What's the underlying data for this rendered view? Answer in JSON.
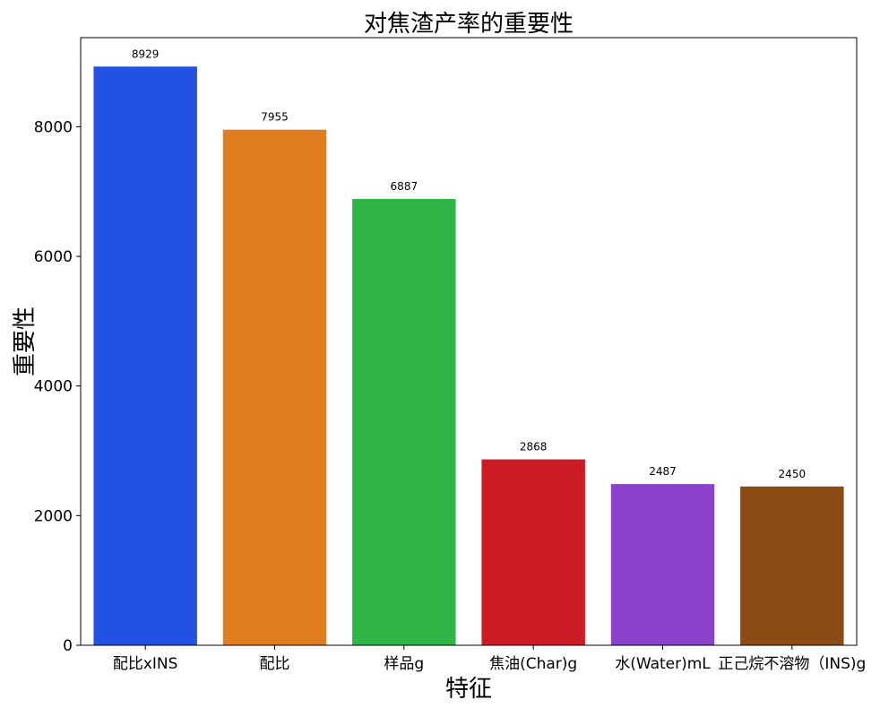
{
  "chart_data": {
    "type": "bar",
    "title": "对焦渣产率的重要性",
    "xlabel": "特征",
    "ylabel": "重要性",
    "categories": [
      "配比xINS",
      "配比",
      "样品g",
      "焦油(Char)g",
      "水(Water)mL",
      "正己烷不溶物（INS)g"
    ],
    "values": [
      8929,
      7955,
      6887,
      2868,
      2487,
      2450
    ],
    "data_labels": [
      "8929",
      "7955",
      "6887",
      "2868",
      "2487",
      "2450"
    ],
    "colors": [
      "#2251e3",
      "#e07e1f",
      "#30b548",
      "#cb1c25",
      "#8942c9",
      "#8b4b15"
    ],
    "ylim": [
      0,
      9375
    ],
    "yticks": [
      0,
      2000,
      4000,
      6000,
      8000
    ],
    "ytick_labels": [
      "0",
      "2000",
      "4000",
      "6000",
      "8000"
    ],
    "grid": false,
    "legend": "none"
  }
}
